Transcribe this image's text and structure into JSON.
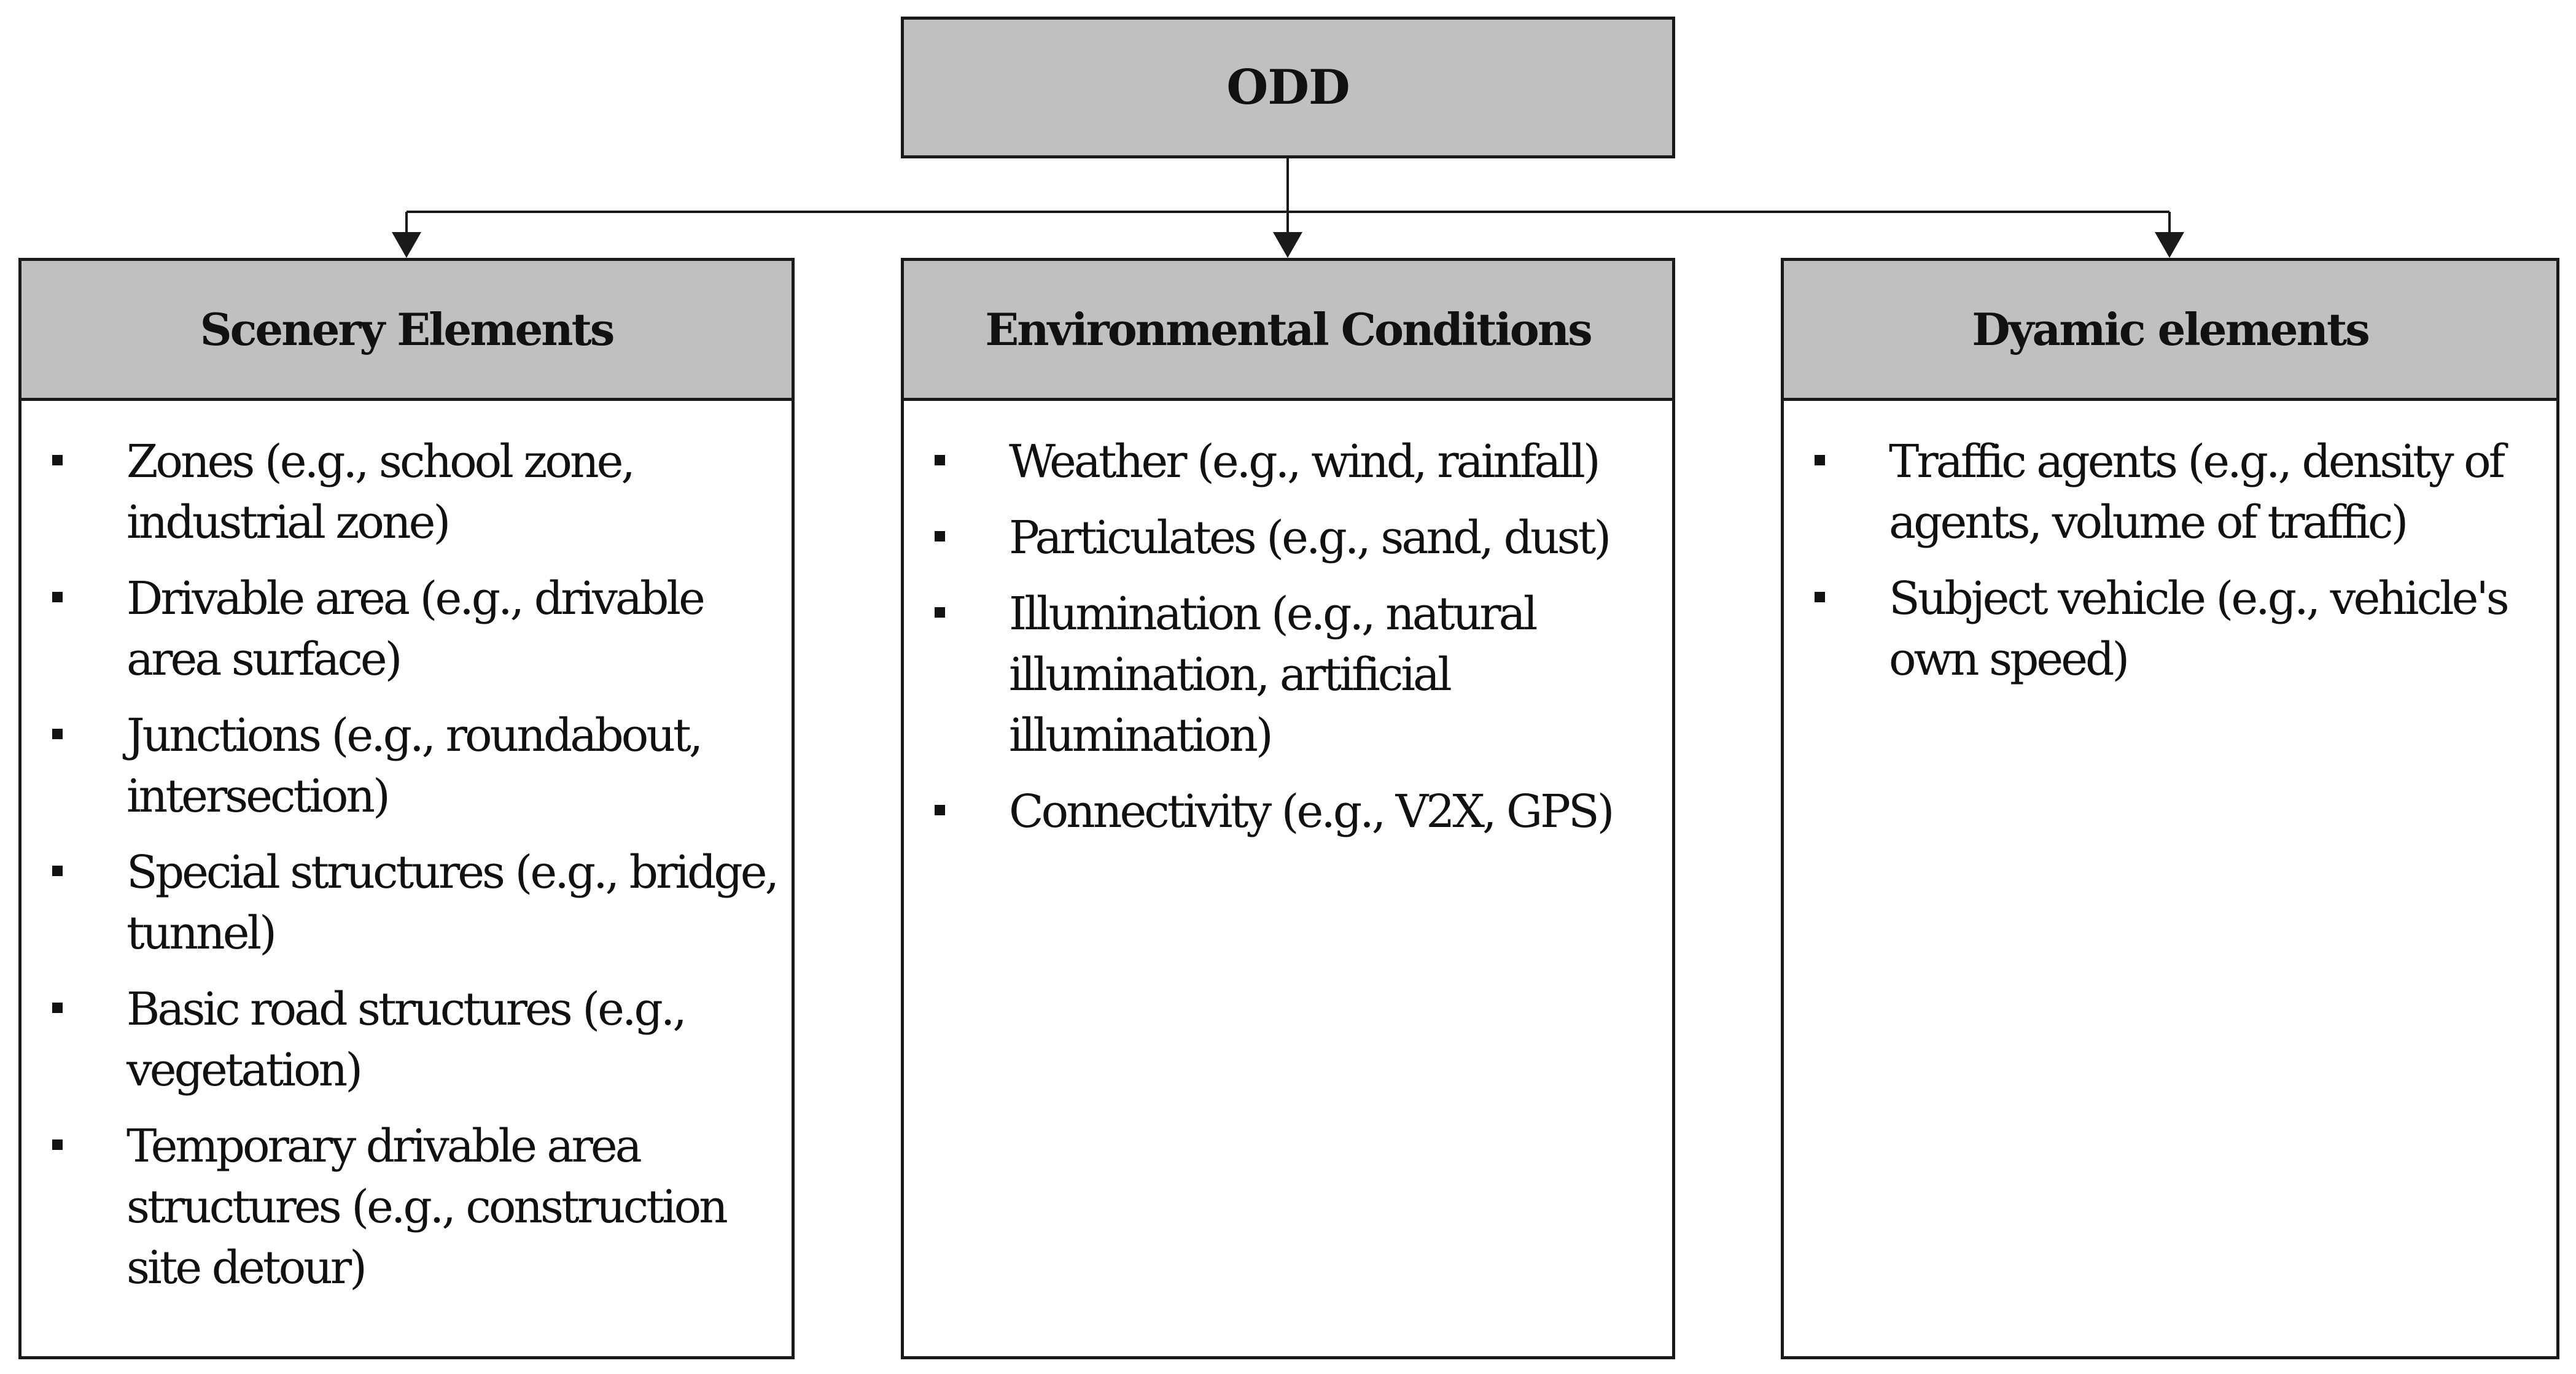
{
  "root": {
    "title": "ODD"
  },
  "categories": [
    {
      "title": "Scenery Elements",
      "items": [
        "Zones (e.g., school zone, industrial zone)",
        "Drivable area (e.g., drivable area surface)",
        "Junctions (e.g., roundabout, intersection)",
        "Special structures (e.g., bridge, tunnel)",
        "Basic road structures (e.g., vegetation)",
        "Temporary drivable area structures (e.g., construction site detour)"
      ]
    },
    {
      "title": "Environmental Conditions",
      "items": [
        "Weather (e.g., wind, rainfall)",
        "Particulates (e.g., sand, dust)",
        "Illumination (e.g., natural illumination, artificial illumination)",
        "Connectivity (e.g., V2X, GPS)"
      ]
    },
    {
      "title": "Dyamic elements",
      "items": [
        "Traffic agents (e.g., density of agents, volume of traffic)",
        "Subject vehicle (e.g., vehicle's own speed)"
      ]
    }
  ],
  "colors": {
    "header_fill": "#c0c0c0",
    "border": "#1a1a1a",
    "background": "#ffffff",
    "text": "#111111"
  }
}
